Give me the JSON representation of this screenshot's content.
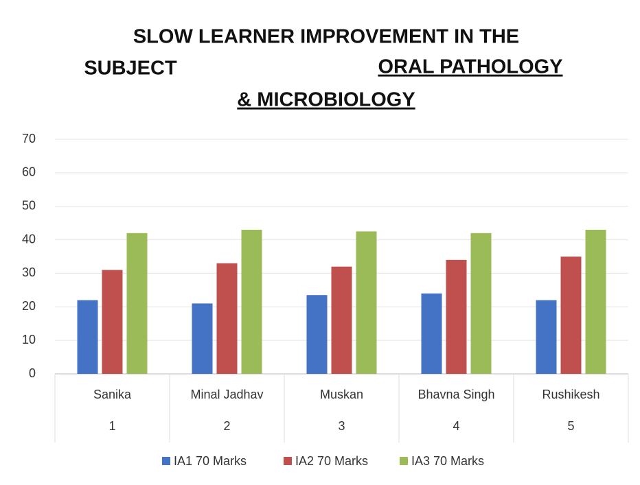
{
  "chart_data": {
    "type": "bar",
    "title": [
      "SLOW LEARNER IMPROVEMENT IN THE",
      "SUBJECT",
      "ORAL PATHOLOGY",
      "& MICROBIOLOGY"
    ],
    "categories": [
      "Sanika",
      "Minal Jadhav",
      "Muskan",
      "Bhavna Singh",
      "Rushikesh"
    ],
    "category_numbers": [
      1,
      2,
      3,
      4,
      5
    ],
    "series": [
      {
        "name": "IA1 70 Marks",
        "color": "#4472c4",
        "values": [
          22,
          21,
          23.5,
          24,
          22
        ]
      },
      {
        "name": "IA2 70 Marks",
        "color": "#c0504d",
        "values": [
          31,
          33,
          32,
          34,
          35
        ]
      },
      {
        "name": "IA3 70 Marks",
        "color": "#9bbb59",
        "values": [
          42,
          43,
          42.5,
          42,
          43
        ]
      }
    ],
    "ylim": [
      0,
      70
    ],
    "yticks": [
      0,
      10,
      20,
      30,
      40,
      50,
      60,
      70
    ],
    "grid": true,
    "legend": "bottom"
  }
}
